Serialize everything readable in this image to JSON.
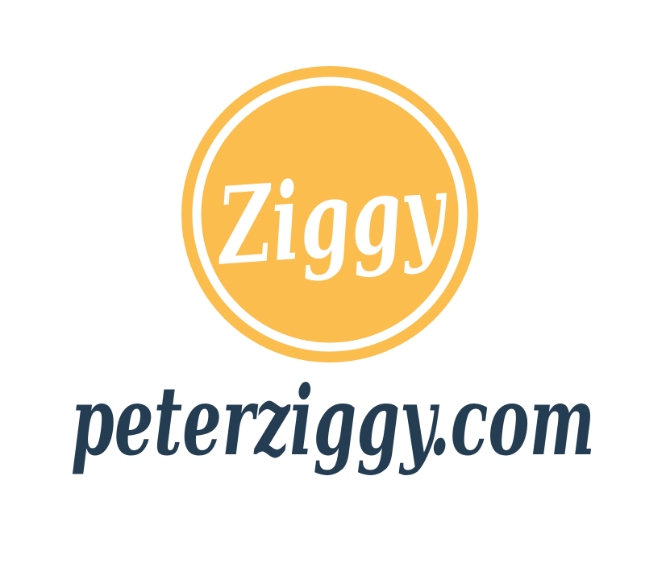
{
  "logo": {
    "badge_text": "Ziggy",
    "badge_color": "#FBBD4E",
    "badge_text_color": "#FFFFFF",
    "ring_color": "#FFFFFF"
  },
  "wordmark": {
    "text": "peterziggy.com",
    "color": "#253D52"
  }
}
